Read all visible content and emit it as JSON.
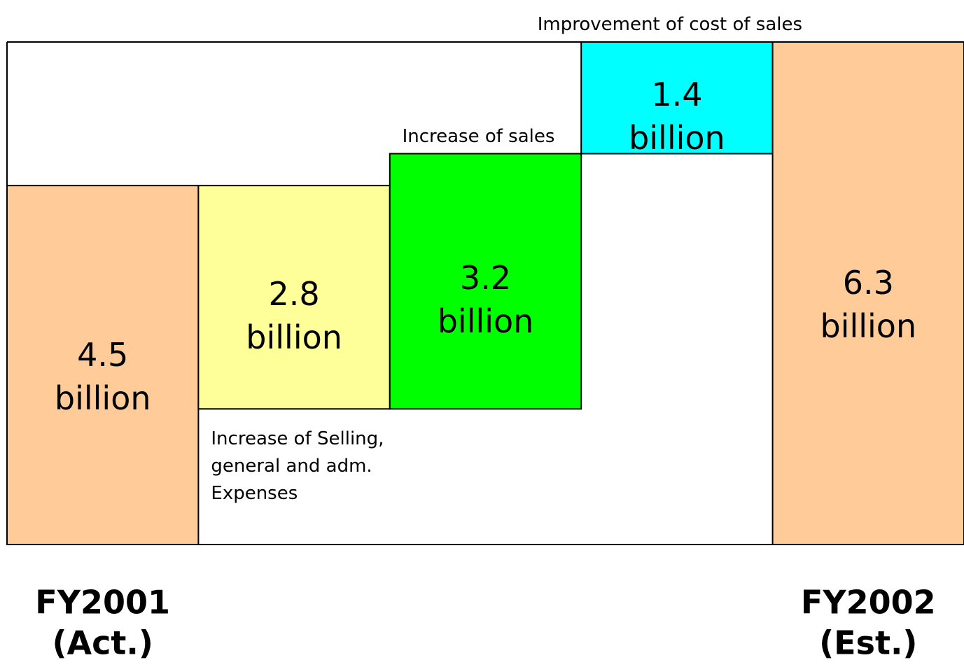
{
  "chart_data": {
    "type": "waterfall",
    "categories": [
      "FY2001 (Act.)",
      "Increase of Selling, general and adm. Expenses",
      "Increase of sales",
      "Improvement of cost of sales",
      "FY2002 (Est.)"
    ],
    "values": [
      4.5,
      -2.8,
      3.2,
      1.4,
      6.3
    ],
    "value_labels": [
      "4.5 billion",
      "2.8 billion",
      "3.2 billion",
      "1.4 billion",
      "6.3 billion"
    ],
    "measure": [
      "absolute",
      "relative",
      "relative",
      "relative",
      "absolute"
    ],
    "colors": [
      "#ffcc99",
      "#ffff99",
      "#00ff00",
      "#00ffff",
      "#ffcc99"
    ],
    "ylim": [
      0,
      6.3
    ]
  }
}
